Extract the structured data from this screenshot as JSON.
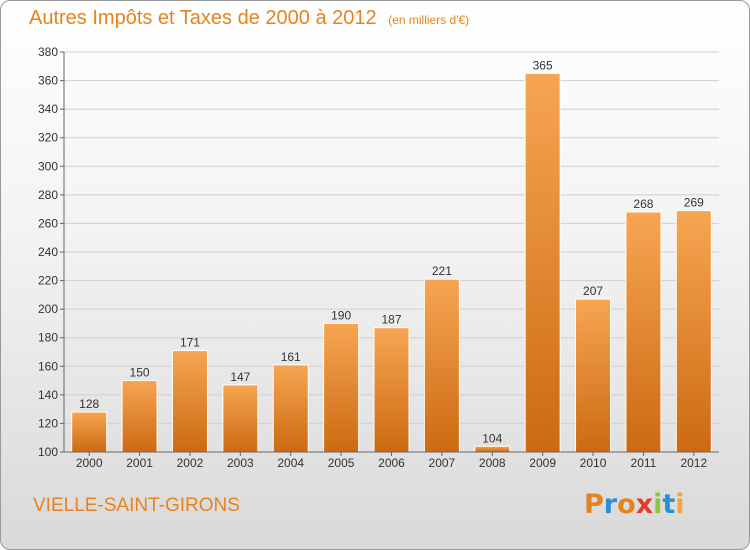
{
  "header": {
    "title": "Autres Impôts et Taxes de 2000 à 2012",
    "unit": "(en milliers d'€)"
  },
  "footer": {
    "commune": "VIELLE-SAINT-GIRONS",
    "logo_letters": [
      "P",
      "r",
      "o",
      "x",
      "i",
      "t",
      "i"
    ],
    "logo_colors": [
      "#e8821e",
      "#2a8fd6",
      "#e8821e",
      "#e23d28",
      "#8cc63f",
      "#2a8fd6",
      "#f1a53a"
    ]
  },
  "colors": {
    "bar_top": "#f7a552",
    "bar_bottom": "#cc6a12",
    "grid": "#cfcfcf",
    "axis": "#666666"
  },
  "chart_data": {
    "type": "bar",
    "categories": [
      "2000",
      "2001",
      "2002",
      "2003",
      "2004",
      "2005",
      "2006",
      "2007",
      "2008",
      "2009",
      "2010",
      "2011",
      "2012"
    ],
    "values": [
      128,
      150,
      171,
      147,
      161,
      190,
      187,
      221,
      104,
      365,
      207,
      268,
      269
    ],
    "ylim": [
      100,
      380
    ],
    "yticks": [
      100,
      120,
      140,
      160,
      180,
      200,
      220,
      240,
      260,
      280,
      300,
      320,
      340,
      360,
      380
    ],
    "grid": true,
    "data_labels": true
  }
}
